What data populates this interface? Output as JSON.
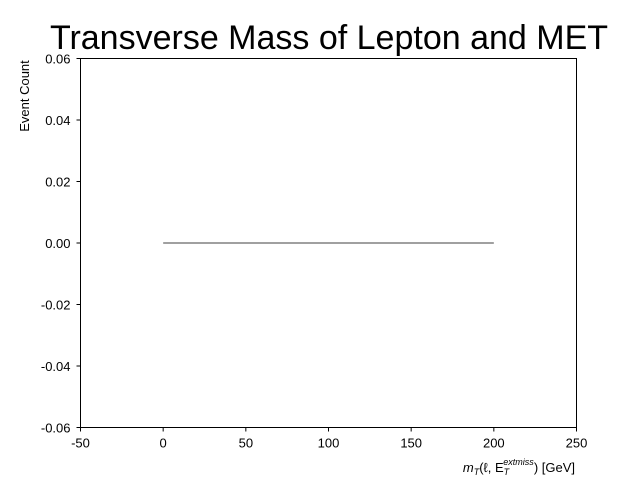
{
  "chart_data": {
    "type": "line",
    "title": "Transverse Mass of Lepton and MET",
    "xlabel_parts": {
      "m": "m",
      "m_sub": "T",
      "mid": "(ℓ, E",
      "e_sub": "T",
      "e_sup": "extmiss",
      "end": ") [GeV]"
    },
    "ylabel": "Event Count",
    "xlim": [
      -50,
      250
    ],
    "ylim": [
      -0.06,
      0.06
    ],
    "xticks": [
      -50,
      0,
      50,
      100,
      150,
      200,
      250
    ],
    "xtick_labels": [
      "-50",
      "0",
      "50",
      "100",
      "150",
      "200",
      "250"
    ],
    "yticks": [
      -0.06,
      -0.04,
      -0.02,
      0.0,
      0.02,
      0.04,
      0.06
    ],
    "ytick_labels": [
      "-0.06",
      "-0.04",
      "-0.02",
      "0.00",
      "0.02",
      "0.04",
      "0.06"
    ],
    "grid": false,
    "series": [
      {
        "x": [
          0,
          200
        ],
        "y": [
          0,
          0
        ],
        "color": "#808080"
      }
    ]
  }
}
